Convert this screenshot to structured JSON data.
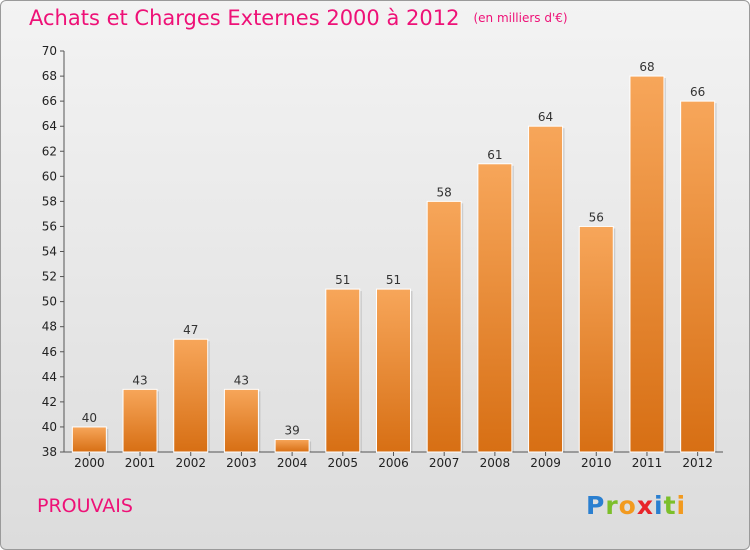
{
  "header": {
    "title": "Achats et Charges Externes 2000 à 2012",
    "unit": "(en milliers d'€)"
  },
  "footer": {
    "commune": "PROUVAIS",
    "logo_letters": [
      "P",
      "r",
      "o",
      "x",
      "i",
      "t",
      "i"
    ],
    "logo_colors": [
      "#2a7fd0",
      "#7cbf2a",
      "#f29a1f",
      "#e8242a",
      "#2a7fd0",
      "#7cbf2a",
      "#f29a1f"
    ]
  },
  "colors": {
    "title": "#ee1177",
    "bar_light": "#f7a65a",
    "bar_dark": "#d76f14"
  },
  "chart_data": {
    "type": "bar",
    "title": "Achats et Charges Externes 2000 à 2012",
    "categories": [
      "2000",
      "2001",
      "2002",
      "2003",
      "2004",
      "2005",
      "2006",
      "2007",
      "2008",
      "2009",
      "2010",
      "2011",
      "2012"
    ],
    "values": [
      40,
      43,
      47,
      43,
      39,
      51,
      51,
      58,
      61,
      64,
      56,
      68,
      66
    ],
    "ylim": [
      38,
      70
    ],
    "yticks": [
      38,
      40,
      42,
      44,
      46,
      48,
      50,
      52,
      54,
      56,
      58,
      60,
      62,
      64,
      66,
      68,
      70
    ],
    "grid": false,
    "legend": "none"
  }
}
